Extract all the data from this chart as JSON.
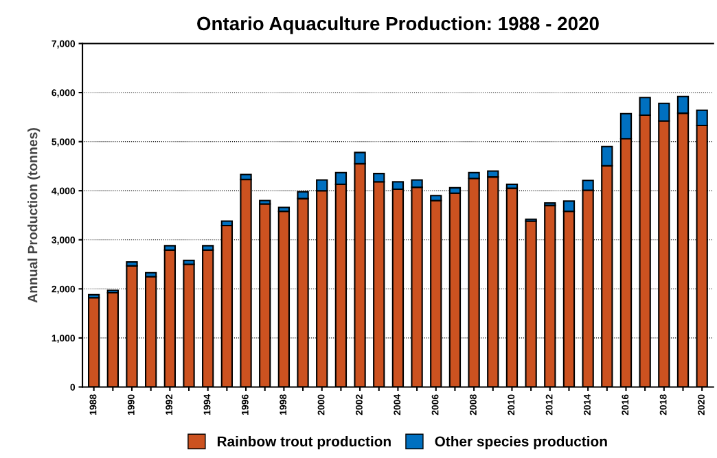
{
  "chart_data": {
    "type": "bar",
    "title": "Ontario Aquaculture Production: 1988 - 2020",
    "ylabel": "Annual Production (tonnes)",
    "categories": [
      "1988",
      null,
      "1990",
      null,
      "1992",
      null,
      "1994",
      null,
      "1996",
      null,
      "1998",
      null,
      "2000",
      null,
      "2002",
      null,
      "2004",
      null,
      "2006",
      null,
      "2008",
      null,
      "2010",
      null,
      "2012",
      null,
      "2014",
      null,
      "2016",
      null,
      "2018",
      null,
      "2020"
    ],
    "stacked": true,
    "series": [
      {
        "name": "Rainbow trout production",
        "color": "#cc5220",
        "values": [
          1820,
          1920,
          2470,
          2250,
          2790,
          2500,
          2790,
          3290,
          4230,
          3730,
          3580,
          3840,
          4000,
          4130,
          4550,
          4180,
          4030,
          4070,
          3800,
          3950,
          4250,
          4280,
          4050,
          3380,
          3700,
          3580,
          4010,
          4510,
          5060,
          5540,
          5420,
          5580,
          5330
        ]
      },
      {
        "name": "Other species production",
        "color": "#0070c0",
        "values": [
          60,
          50,
          80,
          80,
          90,
          80,
          90,
          90,
          100,
          70,
          80,
          140,
          220,
          240,
          230,
          170,
          150,
          150,
          100,
          110,
          120,
          120,
          80,
          40,
          50,
          210,
          200,
          390,
          510,
          360,
          360,
          340,
          310
        ]
      }
    ],
    "ylim": [
      0,
      7000
    ],
    "yticks": [
      {
        "value": 0,
        "label": "0"
      },
      {
        "value": 1000,
        "label": "1,000"
      },
      {
        "value": 2000,
        "label": "2,000"
      },
      {
        "value": 3000,
        "label": "3,000"
      },
      {
        "value": 4000,
        "label": "4,000"
      },
      {
        "value": 5000,
        "label": "5,000"
      },
      {
        "value": 6000,
        "label": "6,000"
      },
      {
        "value": 7000,
        "label": "7,000"
      }
    ],
    "grid": "y",
    "legend": "bottom"
  }
}
